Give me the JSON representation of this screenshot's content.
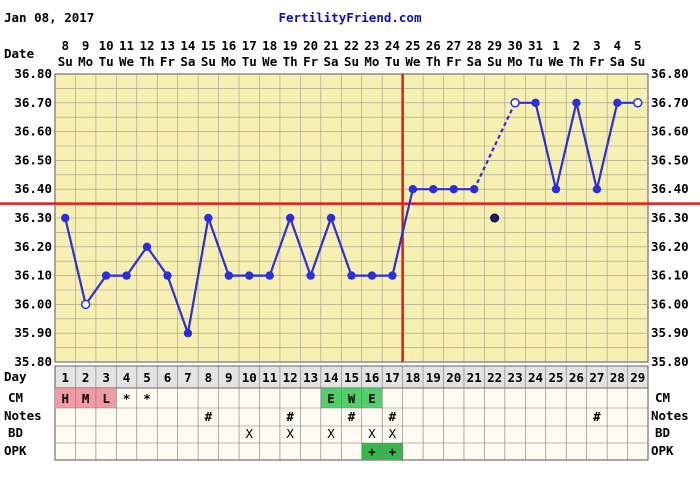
{
  "header": {
    "date": "Jan 08, 2017",
    "site": "FertilityFriend.com"
  },
  "labels": {
    "date_row": "Date",
    "day_row": "Day",
    "cm_row": "CM",
    "notes_row": "Notes",
    "bd_row": "BD",
    "opk_row": "OPK"
  },
  "calendar": {
    "dates": [
      "8",
      "9",
      "10",
      "11",
      "12",
      "13",
      "14",
      "15",
      "16",
      "17",
      "18",
      "19",
      "20",
      "21",
      "22",
      "23",
      "24",
      "25",
      "26",
      "27",
      "28",
      "29",
      "30",
      "31",
      "1",
      "2",
      "3",
      "4",
      "5"
    ],
    "weekdays": [
      "Su",
      "Mo",
      "Tu",
      "We",
      "Th",
      "Fr",
      "Sa",
      "Su",
      "Mo",
      "Tu",
      "We",
      "Th",
      "Fr",
      "Sa",
      "Su",
      "Mo",
      "Tu",
      "We",
      "Th",
      "Fr",
      "Sa",
      "Su",
      "Mo",
      "Tu",
      "We",
      "Th",
      "Fr",
      "Sa",
      "Su"
    ],
    "cycle_days": [
      "1",
      "2",
      "3",
      "4",
      "5",
      "6",
      "7",
      "8",
      "9",
      "10",
      "11",
      "12",
      "13",
      "14",
      "15",
      "16",
      "17",
      "18",
      "19",
      "20",
      "21",
      "22",
      "23",
      "24",
      "25",
      "26",
      "27",
      "28",
      "29"
    ]
  },
  "rows": {
    "cm": [
      "H",
      "M",
      "L",
      "*",
      "*",
      "",
      "",
      "",
      "",
      "",
      "",
      "",
      "",
      "E",
      "W",
      "E",
      "",
      "",
      "",
      "",
      "",
      "",
      "",
      "",
      "",
      "",
      "",
      "",
      ""
    ],
    "notes": [
      "",
      "",
      "",
      "",
      "",
      "",
      "",
      "#",
      "",
      "",
      "",
      "#",
      "",
      "",
      "#",
      "",
      "#",
      "",
      "",
      "",
      "",
      "",
      "",
      "",
      "",
      "",
      "#",
      "",
      ""
    ],
    "bd": [
      "",
      "",
      "",
      "",
      "",
      "",
      "",
      "",
      "",
      "X",
      "",
      "X",
      "",
      "X",
      "",
      "X",
      "X",
      "",
      "",
      "",
      "",
      "",
      "",
      "",
      "",
      "",
      "",
      "",
      ""
    ],
    "opk": [
      "",
      "",
      "",
      "",
      "",
      "",
      "",
      "",
      "",
      "",
      "",
      "",
      "",
      "",
      "",
      "+",
      "+",
      "",
      "",
      "",
      "",
      "",
      "",
      "",
      "",
      "",
      "",
      "",
      ""
    ]
  },
  "colors": {
    "grid_bg": "#f7f0b2",
    "menses": "#f29aa5",
    "fertile_cm": "#4fd06a",
    "opk_positive": "#33b84e",
    "line": "#2a2ee0",
    "coverline": "#e21b1b",
    "site": "#1010b0"
  },
  "chart_data": {
    "type": "line",
    "title": "",
    "xlabel": "Day",
    "ylabel": "",
    "x": [
      1,
      2,
      3,
      4,
      5,
      6,
      7,
      8,
      9,
      10,
      11,
      12,
      13,
      14,
      15,
      16,
      17,
      18,
      19,
      20,
      21,
      22,
      23,
      24,
      25,
      26,
      27,
      28,
      29
    ],
    "ylim": [
      35.8,
      36.8
    ],
    "y_ticks": [
      "35.80",
      "35.90",
      "36.00",
      "36.10",
      "36.20",
      "36.30",
      "36.40",
      "36.50",
      "36.60",
      "36.70",
      "36.80"
    ],
    "series": [
      {
        "values": [
          36.3,
          36.0,
          36.1,
          36.1,
          36.2,
          36.1,
          35.9,
          36.3,
          36.1,
          36.1,
          36.1,
          36.3,
          36.1,
          36.3,
          36.1,
          36.1,
          36.1,
          36.4,
          36.4,
          36.4,
          36.4,
          36.3,
          36.7,
          36.7,
          36.4,
          36.7,
          36.4,
          36.7,
          36.7
        ],
        "open_points": [
          2,
          23,
          29
        ],
        "excluded_points": [
          22
        ],
        "dashed_segment": [
          21,
          23
        ]
      }
    ],
    "coverline": 36.35,
    "ovulation_day": 17,
    "grid": true
  }
}
